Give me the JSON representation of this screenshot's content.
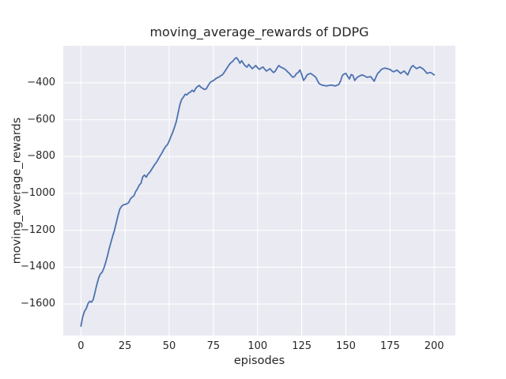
{
  "colors": {
    "line": "#4c72b0",
    "plot_background": "#eaeaf2",
    "grid": "#ffffff",
    "text": "#262626",
    "figure_background": "#ffffff"
  },
  "chart_data": {
    "type": "line",
    "title": "moving_average_rewards of DDPG",
    "xlabel": "episodes",
    "ylabel": "moving_average_rewards",
    "grid": true,
    "legend_position": "none",
    "xlim": [
      -10,
      212
    ],
    "ylim": [
      -1771,
      -199
    ],
    "xticks": [
      0,
      25,
      50,
      75,
      100,
      125,
      150,
      175,
      200
    ],
    "xtick_labels": [
      "0",
      "25",
      "50",
      "75",
      "100",
      "125",
      "150",
      "175",
      "200"
    ],
    "yticks": [
      -400,
      -600,
      -800,
      -1000,
      -1200,
      -1400,
      -1600
    ],
    "ytick_labels": [
      "−400",
      "−600",
      "−800",
      "−1000",
      "−1200",
      "−1400",
      "−1600"
    ],
    "series": [
      {
        "name": "moving_average_rewards",
        "x_start": 0,
        "x_step": 1,
        "values": [
          -1720,
          -1670,
          -1640,
          -1625,
          -1598,
          -1585,
          -1590,
          -1575,
          -1535,
          -1495,
          -1460,
          -1437,
          -1428,
          -1405,
          -1375,
          -1340,
          -1300,
          -1265,
          -1230,
          -1200,
          -1160,
          -1120,
          -1085,
          -1070,
          -1062,
          -1060,
          -1056,
          -1050,
          -1030,
          -1020,
          -1013,
          -990,
          -975,
          -955,
          -945,
          -910,
          -900,
          -912,
          -895,
          -885,
          -870,
          -855,
          -840,
          -828,
          -810,
          -794,
          -778,
          -760,
          -745,
          -735,
          -715,
          -690,
          -668,
          -640,
          -610,
          -565,
          -520,
          -490,
          -478,
          -462,
          -465,
          -455,
          -450,
          -440,
          -448,
          -430,
          -420,
          -414,
          -425,
          -430,
          -436,
          -432,
          -415,
          -400,
          -392,
          -388,
          -380,
          -373,
          -370,
          -362,
          -357,
          -345,
          -330,
          -315,
          -300,
          -290,
          -283,
          -270,
          -263,
          -275,
          -293,
          -280,
          -295,
          -308,
          -315,
          -300,
          -312,
          -323,
          -315,
          -306,
          -318,
          -327,
          -320,
          -314,
          -325,
          -336,
          -330,
          -323,
          -334,
          -344,
          -337,
          -320,
          -306,
          -314,
          -318,
          -323,
          -330,
          -340,
          -349,
          -360,
          -370,
          -365,
          -350,
          -344,
          -330,
          -355,
          -387,
          -375,
          -357,
          -352,
          -349,
          -355,
          -362,
          -370,
          -390,
          -405,
          -410,
          -413,
          -415,
          -417,
          -415,
          -413,
          -412,
          -415,
          -417,
          -413,
          -409,
          -390,
          -360,
          -352,
          -349,
          -365,
          -379,
          -355,
          -360,
          -387,
          -375,
          -366,
          -362,
          -357,
          -360,
          -365,
          -370,
          -368,
          -366,
          -378,
          -391,
          -370,
          -349,
          -340,
          -328,
          -323,
          -320,
          -322,
          -325,
          -327,
          -335,
          -340,
          -335,
          -331,
          -340,
          -349,
          -342,
          -336,
          -347,
          -357,
          -335,
          -315,
          -306,
          -315,
          -323,
          -318,
          -314,
          -320,
          -327,
          -338,
          -349,
          -345,
          -344,
          -350,
          -357
        ]
      }
    ]
  }
}
